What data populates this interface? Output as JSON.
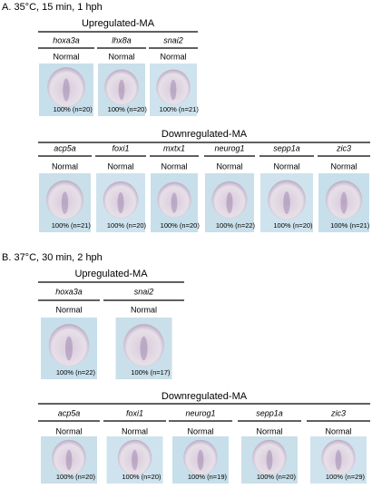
{
  "panels": [
    {
      "title": "A. 35°C, 15 min, 1 hph",
      "groups": [
        {
          "title": "Upregulated-MA",
          "genes": [
            {
              "name": "hoxa3a",
              "phenotype": "Normal",
              "label": "100% (n=20)"
            },
            {
              "name": "lhx8a",
              "phenotype": "Normal",
              "label": "100% (n=20)"
            },
            {
              "name": "snai2",
              "phenotype": "Normal",
              "label": "100% (n=21)"
            }
          ]
        },
        {
          "title": "Downregulated-MA",
          "genes": [
            {
              "name": "acp5a",
              "phenotype": "Normal",
              "label": "100% (n=21)"
            },
            {
              "name": "foxi1",
              "phenotype": "Normal",
              "label": "100% (n=20)"
            },
            {
              "name": "mxtx1",
              "phenotype": "Normal",
              "label": "100% (n=20)"
            },
            {
              "name": "neurog1",
              "phenotype": "Normal",
              "label": "100% (n=22)"
            },
            {
              "name": "sepp1a",
              "phenotype": "Normal",
              "label": "100% (n=20)"
            },
            {
              "name": "zic3",
              "phenotype": "Normal",
              "label": "100% (n=21)"
            }
          ]
        }
      ]
    },
    {
      "title": "B. 37°C, 30 min, 2 hph",
      "groups": [
        {
          "title": "Upregulated-MA",
          "genes": [
            {
              "name": "hoxa3a",
              "phenotype": "Normal",
              "label": "100% (n=22)"
            },
            {
              "name": "snai2",
              "phenotype": "Normal",
              "label": "100% (n=17)"
            }
          ]
        },
        {
          "title": "Downregulated-MA",
          "genes": [
            {
              "name": "acp5a",
              "phenotype": "Normal",
              "label": "100% (n=20)"
            },
            {
              "name": "foxi1",
              "phenotype": "Normal",
              "label": "100% (n=20)"
            },
            {
              "name": "neurog1",
              "phenotype": "Normal",
              "label": "100% (n=19)"
            },
            {
              "name": "sepp1a",
              "phenotype": "Normal",
              "label": "100% (n=20)"
            },
            {
              "name": "zic3",
              "phenotype": "Normal",
              "label": "100% (n=29)"
            }
          ]
        }
      ]
    }
  ]
}
